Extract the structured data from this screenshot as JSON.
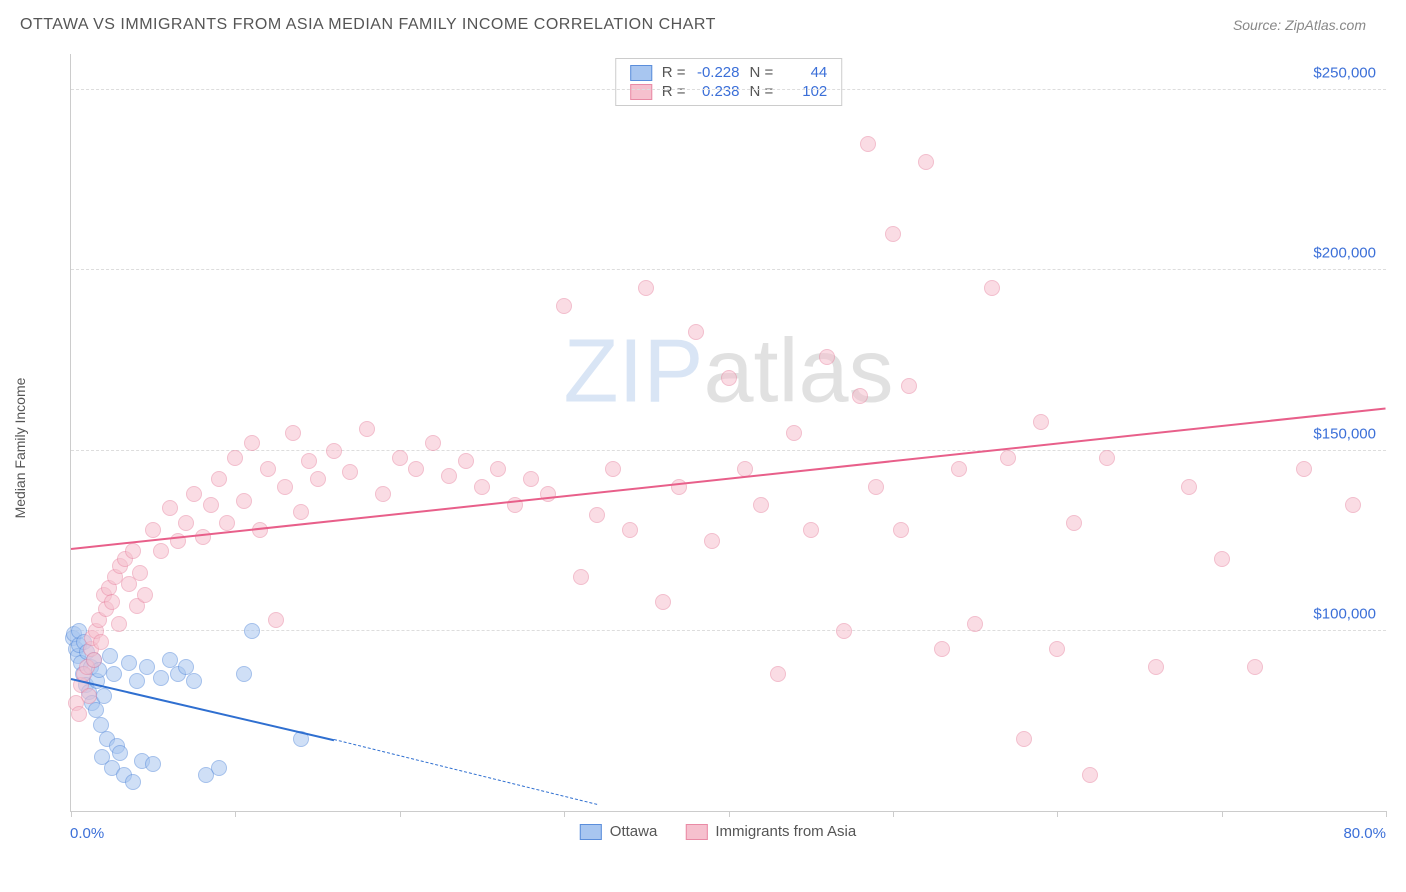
{
  "title": "OTTAWA VS IMMIGRANTS FROM ASIA MEDIAN FAMILY INCOME CORRELATION CHART",
  "source": "Source: ZipAtlas.com",
  "y_axis_label": "Median Family Income",
  "watermark": {
    "part1": "ZIP",
    "part2": "atlas"
  },
  "chart": {
    "type": "scatter",
    "xlim": [
      0,
      80
    ],
    "ylim": [
      50000,
      260000
    ],
    "x_tick_positions": [
      0,
      10,
      20,
      30,
      40,
      50,
      60,
      70,
      80
    ],
    "x_tick_labels": {
      "0": "0.0%",
      "80": "80.0%"
    },
    "y_ticks": [
      100000,
      150000,
      200000,
      250000
    ],
    "y_tick_labels": [
      "$100,000",
      "$150,000",
      "$200,000",
      "$250,000"
    ],
    "grid_color": "#dddddd",
    "background_color": "#ffffff",
    "marker_radius": 8,
    "marker_opacity": 0.55,
    "series": [
      {
        "name": "Ottawa",
        "label": "Ottawa",
        "color_fill": "#a8c6f0",
        "color_stroke": "#5b8edb",
        "line_color": "#2f6fd0",
        "R": "-0.228",
        "N": "44",
        "trend": {
          "x1": 0,
          "y1": 87000,
          "x2": 16,
          "y2": 70000,
          "dashed_to_x": 32,
          "dashed_to_y": 52000
        },
        "points": [
          [
            0.1,
            98000
          ],
          [
            0.2,
            99000
          ],
          [
            0.3,
            95000
          ],
          [
            0.4,
            93000
          ],
          [
            0.5,
            96000
          ],
          [
            0.5,
            100000
          ],
          [
            0.6,
            91000
          ],
          [
            0.7,
            88000
          ],
          [
            0.8,
            97000
          ],
          [
            0.9,
            85000
          ],
          [
            1.0,
            94000
          ],
          [
            1.1,
            83000
          ],
          [
            1.2,
            90000
          ],
          [
            1.3,
            80000
          ],
          [
            1.4,
            92000
          ],
          [
            1.5,
            78000
          ],
          [
            1.6,
            86000
          ],
          [
            1.7,
            89000
          ],
          [
            1.8,
            74000
          ],
          [
            1.9,
            65000
          ],
          [
            2.0,
            82000
          ],
          [
            2.2,
            70000
          ],
          [
            2.4,
            93000
          ],
          [
            2.5,
            62000
          ],
          [
            2.6,
            88000
          ],
          [
            2.8,
            68000
          ],
          [
            3.0,
            66000
          ],
          [
            3.2,
            60000
          ],
          [
            3.5,
            91000
          ],
          [
            3.8,
            58000
          ],
          [
            4.0,
            86000
          ],
          [
            4.3,
            64000
          ],
          [
            4.6,
            90000
          ],
          [
            5.0,
            63000
          ],
          [
            5.5,
            87000
          ],
          [
            6.0,
            92000
          ],
          [
            6.5,
            88000
          ],
          [
            7.0,
            90000
          ],
          [
            7.5,
            86000
          ],
          [
            8.2,
            60000
          ],
          [
            9.0,
            62000
          ],
          [
            10.5,
            88000
          ],
          [
            11.0,
            100000
          ],
          [
            14.0,
            70000
          ]
        ]
      },
      {
        "name": "Immigrants from Asia",
        "label": "Immigrants from Asia",
        "color_fill": "#f6c0ce",
        "color_stroke": "#e98aa5",
        "line_color": "#e85f8a",
        "R": "0.238",
        "N": "102",
        "trend": {
          "x1": 0,
          "y1": 123000,
          "x2": 80,
          "y2": 162000
        },
        "points": [
          [
            0.3,
            80000
          ],
          [
            0.5,
            77000
          ],
          [
            0.6,
            85000
          ],
          [
            0.8,
            88000
          ],
          [
            1.0,
            90000
          ],
          [
            1.1,
            82000
          ],
          [
            1.2,
            95000
          ],
          [
            1.3,
            98000
          ],
          [
            1.4,
            92000
          ],
          [
            1.5,
            100000
          ],
          [
            1.7,
            103000
          ],
          [
            1.8,
            97000
          ],
          [
            2.0,
            110000
          ],
          [
            2.1,
            106000
          ],
          [
            2.3,
            112000
          ],
          [
            2.5,
            108000
          ],
          [
            2.7,
            115000
          ],
          [
            2.9,
            102000
          ],
          [
            3.0,
            118000
          ],
          [
            3.3,
            120000
          ],
          [
            3.5,
            113000
          ],
          [
            3.8,
            122000
          ],
          [
            4.0,
            107000
          ],
          [
            4.2,
            116000
          ],
          [
            4.5,
            110000
          ],
          [
            5.0,
            128000
          ],
          [
            5.5,
            122000
          ],
          [
            6.0,
            134000
          ],
          [
            6.5,
            125000
          ],
          [
            7.0,
            130000
          ],
          [
            7.5,
            138000
          ],
          [
            8.0,
            126000
          ],
          [
            8.5,
            135000
          ],
          [
            9.0,
            142000
          ],
          [
            9.5,
            130000
          ],
          [
            10.0,
            148000
          ],
          [
            10.5,
            136000
          ],
          [
            11.0,
            152000
          ],
          [
            11.5,
            128000
          ],
          [
            12.0,
            145000
          ],
          [
            12.5,
            103000
          ],
          [
            13.0,
            140000
          ],
          [
            13.5,
            155000
          ],
          [
            14.0,
            133000
          ],
          [
            14.5,
            147000
          ],
          [
            15.0,
            142000
          ],
          [
            16.0,
            150000
          ],
          [
            17.0,
            144000
          ],
          [
            18.0,
            156000
          ],
          [
            19.0,
            138000
          ],
          [
            20.0,
            148000
          ],
          [
            21.0,
            145000
          ],
          [
            22.0,
            152000
          ],
          [
            23.0,
            143000
          ],
          [
            24.0,
            147000
          ],
          [
            25.0,
            140000
          ],
          [
            26.0,
            145000
          ],
          [
            27.0,
            135000
          ],
          [
            28.0,
            142000
          ],
          [
            29.0,
            138000
          ],
          [
            30.0,
            190000
          ],
          [
            31.0,
            115000
          ],
          [
            32.0,
            132000
          ],
          [
            33.0,
            145000
          ],
          [
            34.0,
            128000
          ],
          [
            35.0,
            195000
          ],
          [
            36.0,
            108000
          ],
          [
            37.0,
            140000
          ],
          [
            38.0,
            183000
          ],
          [
            39.0,
            125000
          ],
          [
            40.0,
            170000
          ],
          [
            41.0,
            145000
          ],
          [
            42.0,
            135000
          ],
          [
            43.0,
            88000
          ],
          [
            44.0,
            155000
          ],
          [
            45.0,
            128000
          ],
          [
            46.0,
            176000
          ],
          [
            47.0,
            100000
          ],
          [
            48.0,
            165000
          ],
          [
            48.5,
            235000
          ],
          [
            49.0,
            140000
          ],
          [
            50.0,
            210000
          ],
          [
            50.5,
            128000
          ],
          [
            51.0,
            168000
          ],
          [
            52.0,
            230000
          ],
          [
            53.0,
            95000
          ],
          [
            54.0,
            145000
          ],
          [
            55.0,
            102000
          ],
          [
            56.0,
            195000
          ],
          [
            57.0,
            148000
          ],
          [
            58.0,
            70000
          ],
          [
            59.0,
            158000
          ],
          [
            60.0,
            95000
          ],
          [
            61.0,
            130000
          ],
          [
            62.0,
            60000
          ],
          [
            63.0,
            148000
          ],
          [
            66.0,
            90000
          ],
          [
            68.0,
            140000
          ],
          [
            70.0,
            120000
          ],
          [
            72.0,
            90000
          ],
          [
            75.0,
            145000
          ],
          [
            78.0,
            135000
          ]
        ]
      }
    ]
  },
  "legend_top": {
    "r_label": "R =",
    "n_label": "N ="
  },
  "legend_bottom_labels": [
    "Ottawa",
    "Immigrants from Asia"
  ]
}
